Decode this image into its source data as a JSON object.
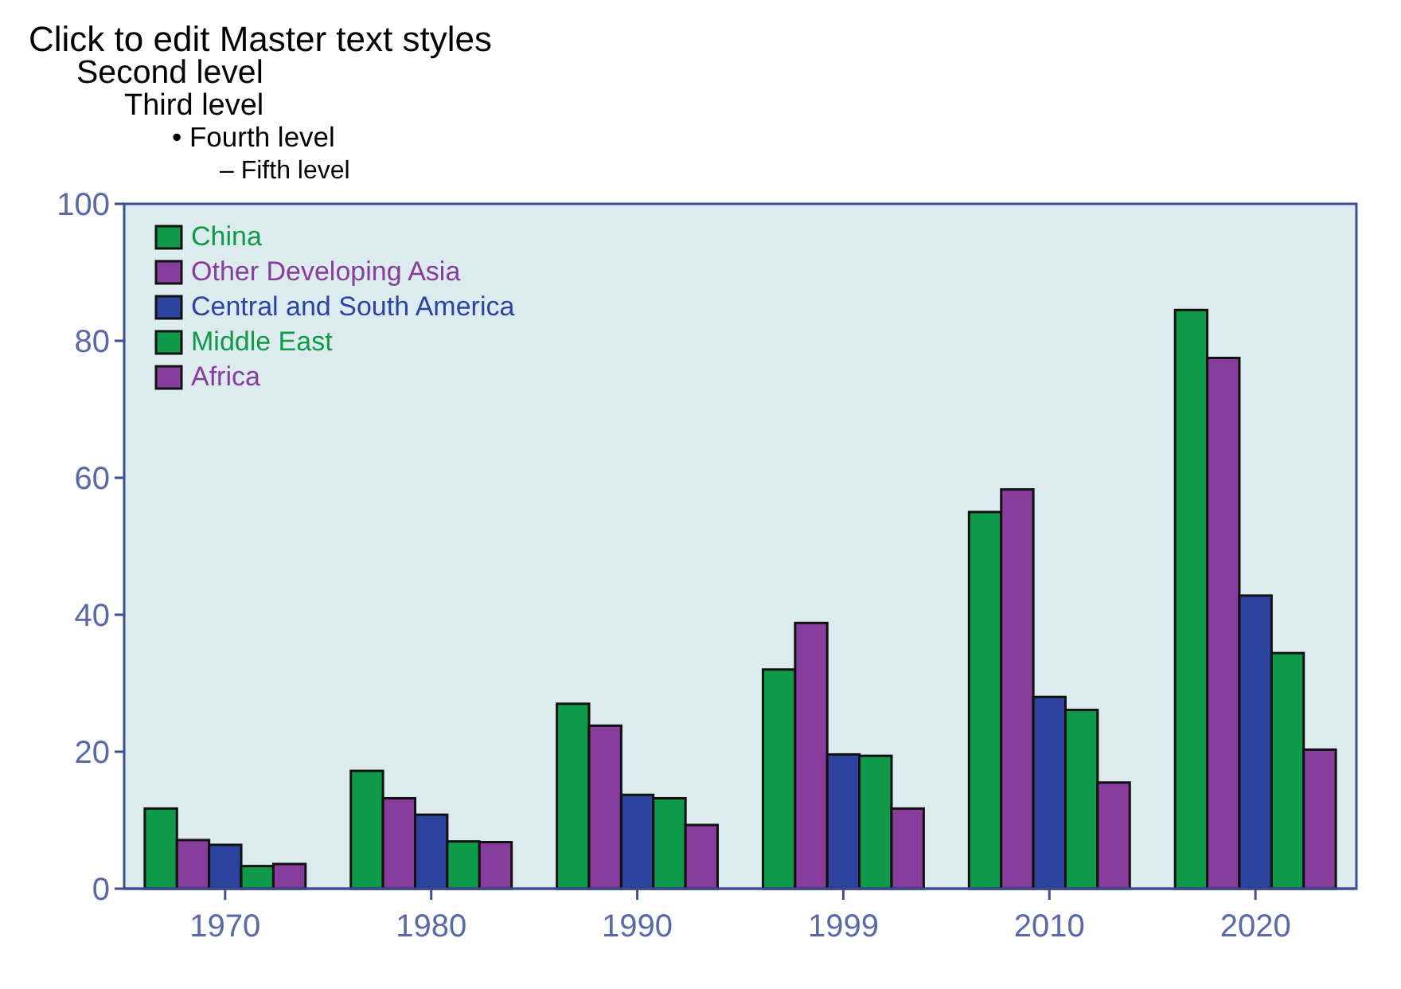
{
  "chart_data": {
    "type": "bar",
    "categories": [
      "1970",
      "1980",
      "1990",
      "1999",
      "2010",
      "2020"
    ],
    "series": [
      {
        "name": "China",
        "color": "#0f9a4a",
        "values": [
          11.7,
          17.2,
          27,
          32,
          55,
          84.5
        ]
      },
      {
        "name": "Other Developing Asia",
        "color": "#883c9c",
        "values": [
          7.1,
          13.2,
          23.8,
          38.8,
          58.3,
          77.5
        ]
      },
      {
        "name": "Central and South America",
        "color": "#2c44a0",
        "values": [
          6.4,
          10.8,
          13.7,
          19.6,
          28,
          42.8
        ]
      },
      {
        "name": "Middle East",
        "color": "#0f9a4a",
        "values": [
          3.3,
          6.9,
          13.2,
          19.4,
          26.1,
          34.4
        ]
      },
      {
        "name": "Africa",
        "color": "#883c9c",
        "values": [
          3.6,
          6.8,
          9.3,
          11.7,
          15.5,
          20.3
        ]
      }
    ],
    "ylim": [
      0,
      100
    ],
    "yticks": [
      0,
      20,
      40,
      60,
      80,
      100
    ],
    "grid": false,
    "legend": "top left",
    "annotations": [
      "Click to edit Master text styles",
      "Second level",
      "Third level",
      "• Fourth level",
      "– Fifth level"
    ]
  }
}
